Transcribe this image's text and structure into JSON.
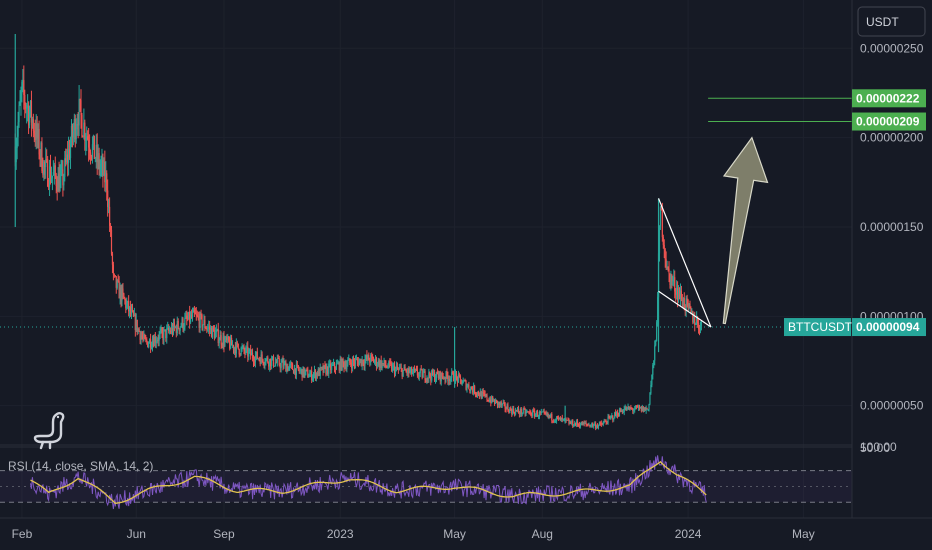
{
  "currency_button": "USDT",
  "chart_data": {
    "type": "candlestick",
    "symbol": "BTTCUSDT",
    "last_price": "0.00000094",
    "y_ticks": [
      "0.00000250",
      "0.00000200",
      "0.00000150",
      "0.00000100",
      "0.00000050"
    ],
    "y_tick_values": [
      2.5e-06,
      2e-06,
      1.5e-06,
      1e-06,
      5e-07
    ],
    "ylim": [
      2.8e-07,
      2.77e-06
    ],
    "x_labels": [
      "Feb",
      "Jun",
      "Sep",
      "2023",
      "May",
      "Aug",
      "2024",
      "May"
    ],
    "x_label_dates": [
      "2022-02-01",
      "2022-06-01",
      "2022-09-01",
      "2023-01-01",
      "2023-05-01",
      "2023-08-01",
      "2024-01-01",
      "2024-05-01"
    ],
    "xlim": [
      "2022-01-09",
      "2024-06-21"
    ],
    "price_path": [
      {
        "date": "2022-01-25",
        "price": 1.95e-06
      },
      {
        "date": "2022-02-01",
        "price": 2.25e-06
      },
      {
        "date": "2022-02-12",
        "price": 2.1e-06
      },
      {
        "date": "2022-02-25",
        "price": 1.82e-06
      },
      {
        "date": "2022-03-15",
        "price": 1.75e-06
      },
      {
        "date": "2022-04-01",
        "price": 2.15e-06
      },
      {
        "date": "2022-04-15",
        "price": 1.95e-06
      },
      {
        "date": "2022-05-01",
        "price": 1.75e-06
      },
      {
        "date": "2022-05-08",
        "price": 1.2e-06
      },
      {
        "date": "2022-05-20",
        "price": 1.08e-06
      },
      {
        "date": "2022-06-10",
        "price": 8.5e-07
      },
      {
        "date": "2022-07-01",
        "price": 9e-07
      },
      {
        "date": "2022-08-01",
        "price": 1e-06
      },
      {
        "date": "2022-09-01",
        "price": 8.6e-07
      },
      {
        "date": "2022-10-01",
        "price": 7.8e-07
      },
      {
        "date": "2022-11-01",
        "price": 7.3e-07
      },
      {
        "date": "2022-12-01",
        "price": 6.7e-07
      },
      {
        "date": "2023-01-01",
        "price": 7.3e-07
      },
      {
        "date": "2023-02-01",
        "price": 7.6e-07
      },
      {
        "date": "2023-03-01",
        "price": 7e-07
      },
      {
        "date": "2023-04-01",
        "price": 6.7e-07
      },
      {
        "date": "2023-05-01",
        "price": 6.6e-07
      },
      {
        "date": "2023-06-01",
        "price": 5.5e-07
      },
      {
        "date": "2023-07-01",
        "price": 4.7e-07
      },
      {
        "date": "2023-08-01",
        "price": 4.5e-07
      },
      {
        "date": "2023-09-01",
        "price": 4e-07
      },
      {
        "date": "2023-10-01",
        "price": 3.9e-07
      },
      {
        "date": "2023-10-25",
        "price": 4.8e-07
      },
      {
        "date": "2023-11-20",
        "price": 4.8e-07
      },
      {
        "date": "2023-11-28",
        "price": 8.5e-07
      },
      {
        "date": "2023-12-03",
        "price": 1.6e-06
      },
      {
        "date": "2023-12-10",
        "price": 1.25e-06
      },
      {
        "date": "2023-12-20",
        "price": 1.15e-06
      },
      {
        "date": "2024-01-05",
        "price": 1e-06
      },
      {
        "date": "2024-01-15",
        "price": 9.4e-07
      }
    ],
    "spikes": [
      {
        "date": "2022-01-25",
        "high": 2.58e-06,
        "low": 1.5e-06
      },
      {
        "date": "2023-05-01",
        "high": 9.4e-07,
        "low": 6e-07
      },
      {
        "date": "2023-08-25",
        "high": 5e-07,
        "low": 4e-07
      },
      {
        "date": "2023-12-01",
        "high": 1.66e-06,
        "low": 8e-07
      }
    ],
    "price_lines": [
      {
        "label": "0.00000222",
        "value": 2.22e-06,
        "start": "2024-01-22",
        "color": "#4caf50"
      },
      {
        "label": "0.00000209",
        "value": 2.09e-06,
        "start": "2024-01-22",
        "color": "#4caf50"
      }
    ],
    "wedge": [
      [
        {
          "date": "2023-12-01",
          "price": 1.66e-06
        },
        {
          "date": "2024-01-25",
          "price": 9.4e-07
        }
      ],
      [
        {
          "date": "2023-12-01",
          "price": 1.14e-06
        },
        {
          "date": "2024-01-25",
          "price": 9.4e-07
        }
      ]
    ],
    "forecast_arrow": {
      "from": {
        "date": "2024-02-08",
        "price": 9.6e-07
      },
      "to": {
        "date": "2024-03-08",
        "price": 2e-06
      }
    },
    "rsi": {
      "label": "RSI (14, close, SMA, 14, 2)",
      "ticks": [
        "100.00",
        "50.00"
      ],
      "tick_values": [
        100,
        50
      ],
      "bands": [
        70,
        30
      ],
      "ylim": [
        10,
        100
      ],
      "path": [
        {
          "date": "2022-02-10",
          "value": 58
        },
        {
          "date": "2022-03-01",
          "value": 40
        },
        {
          "date": "2022-04-01",
          "value": 62
        },
        {
          "date": "2022-05-10",
          "value": 30
        },
        {
          "date": "2022-06-15",
          "value": 45
        },
        {
          "date": "2022-08-01",
          "value": 62
        },
        {
          "date": "2022-09-15",
          "value": 45
        },
        {
          "date": "2022-11-01",
          "value": 44
        },
        {
          "date": "2023-01-10",
          "value": 60
        },
        {
          "date": "2023-03-01",
          "value": 45
        },
        {
          "date": "2023-05-01",
          "value": 50
        },
        {
          "date": "2023-07-01",
          "value": 38
        },
        {
          "date": "2023-09-01",
          "value": 42
        },
        {
          "date": "2023-11-01",
          "value": 50
        },
        {
          "date": "2023-12-03",
          "value": 84
        },
        {
          "date": "2023-12-20",
          "value": 65
        },
        {
          "date": "2024-01-20",
          "value": 40
        }
      ]
    }
  }
}
